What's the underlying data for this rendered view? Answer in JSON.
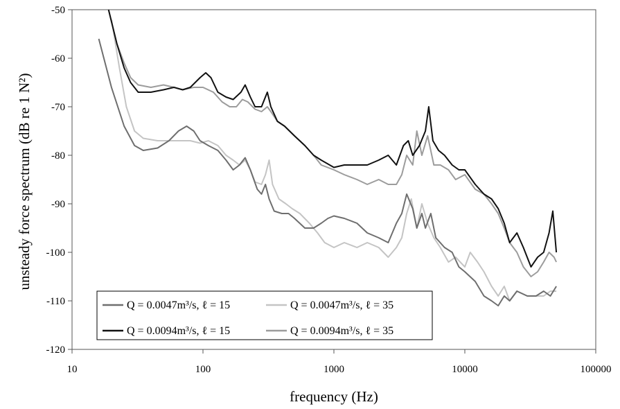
{
  "chart_data": {
    "type": "line",
    "xscale": "log",
    "xlim": [
      10,
      100000
    ],
    "ylim": [
      -120,
      -50
    ],
    "xticks": [
      10,
      100,
      1000,
      10000,
      100000
    ],
    "xtick_labels": [
      "10",
      "100",
      "1000",
      "10000",
      "100000"
    ],
    "yticks": [
      -120,
      -110,
      -100,
      -90,
      -80,
      -70,
      -60,
      -50
    ],
    "ytick_labels": [
      "-120",
      "-110",
      "-100",
      "-90",
      "-80",
      "-70",
      "-60",
      "-50"
    ],
    "xlabel": "frequency (Hz)",
    "ylabel": "unsteady force spectrum (dB re 1 N²)",
    "grid": false,
    "legend_position": "bottom-left",
    "series": [
      {
        "name": "Q = 0.0047m³/s, ℓ = 15",
        "color": "#6e6e6e",
        "points": [
          [
            16,
            -56
          ],
          [
            20,
            -66
          ],
          [
            25,
            -74
          ],
          [
            30,
            -78
          ],
          [
            35,
            -79
          ],
          [
            45,
            -78.5
          ],
          [
            55,
            -77
          ],
          [
            65,
            -75
          ],
          [
            75,
            -74
          ],
          [
            85,
            -75
          ],
          [
            95,
            -77
          ],
          [
            110,
            -78
          ],
          [
            130,
            -79
          ],
          [
            150,
            -81
          ],
          [
            170,
            -83
          ],
          [
            190,
            -82
          ],
          [
            210,
            -80.5
          ],
          [
            230,
            -83
          ],
          [
            260,
            -87
          ],
          [
            280,
            -88
          ],
          [
            300,
            -86
          ],
          [
            320,
            -89
          ],
          [
            350,
            -91.5
          ],
          [
            400,
            -92
          ],
          [
            450,
            -92
          ],
          [
            500,
            -93
          ],
          [
            600,
            -95
          ],
          [
            700,
            -95
          ],
          [
            800,
            -94
          ],
          [
            900,
            -93
          ],
          [
            1000,
            -92.5
          ],
          [
            1200,
            -93
          ],
          [
            1500,
            -94
          ],
          [
            1800,
            -96
          ],
          [
            2200,
            -97
          ],
          [
            2600,
            -98
          ],
          [
            3000,
            -94
          ],
          [
            3300,
            -92
          ],
          [
            3600,
            -88
          ],
          [
            4000,
            -91
          ],
          [
            4300,
            -95
          ],
          [
            4700,
            -92
          ],
          [
            5000,
            -95
          ],
          [
            5500,
            -92
          ],
          [
            6000,
            -97
          ],
          [
            7000,
            -99
          ],
          [
            8000,
            -100
          ],
          [
            9000,
            -103
          ],
          [
            10000,
            -104
          ],
          [
            12000,
            -106
          ],
          [
            14000,
            -109
          ],
          [
            16000,
            -110
          ],
          [
            18000,
            -111
          ],
          [
            20000,
            -109
          ],
          [
            22000,
            -110
          ],
          [
            25000,
            -108
          ],
          [
            30000,
            -109
          ],
          [
            35000,
            -109
          ],
          [
            40000,
            -108
          ],
          [
            45000,
            -109
          ],
          [
            50000,
            -107
          ]
        ]
      },
      {
        "name": "Q = 0.0047m³/s, ℓ = 35",
        "color": "#c4c4c4",
        "points": [
          [
            20,
            -52
          ],
          [
            23,
            -62
          ],
          [
            26,
            -70
          ],
          [
            30,
            -75
          ],
          [
            35,
            -76.5
          ],
          [
            45,
            -77
          ],
          [
            60,
            -77
          ],
          [
            80,
            -77
          ],
          [
            95,
            -77.5
          ],
          [
            110,
            -77
          ],
          [
            130,
            -78
          ],
          [
            150,
            -80
          ],
          [
            170,
            -81
          ],
          [
            190,
            -82
          ],
          [
            210,
            -81
          ],
          [
            230,
            -83
          ],
          [
            250,
            -85.5
          ],
          [
            280,
            -86
          ],
          [
            300,
            -84
          ],
          [
            320,
            -81
          ],
          [
            340,
            -86
          ],
          [
            380,
            -89
          ],
          [
            430,
            -90
          ],
          [
            480,
            -91
          ],
          [
            550,
            -92
          ],
          [
            650,
            -94
          ],
          [
            750,
            -96
          ],
          [
            850,
            -98
          ],
          [
            1000,
            -99
          ],
          [
            1200,
            -98
          ],
          [
            1500,
            -99
          ],
          [
            1800,
            -98
          ],
          [
            2200,
            -99
          ],
          [
            2600,
            -101
          ],
          [
            3000,
            -99
          ],
          [
            3300,
            -97
          ],
          [
            3600,
            -92
          ],
          [
            3900,
            -89
          ],
          [
            4300,
            -95
          ],
          [
            4700,
            -90
          ],
          [
            5200,
            -94
          ],
          [
            5800,
            -97
          ],
          [
            6500,
            -99
          ],
          [
            7500,
            -102
          ],
          [
            8500,
            -101
          ],
          [
            10000,
            -103
          ],
          [
            11000,
            -100
          ],
          [
            12500,
            -102
          ],
          [
            14000,
            -104
          ],
          [
            16000,
            -107
          ],
          [
            18000,
            -109
          ],
          [
            20000,
            -107
          ],
          [
            22000,
            -110
          ],
          [
            25000,
            -108
          ],
          [
            30000,
            -109
          ],
          [
            35000,
            -109
          ],
          [
            40000,
            -109
          ],
          [
            45000,
            -108
          ],
          [
            50000,
            -108
          ]
        ]
      },
      {
        "name": "Q = 0.0094m³/s, ℓ = 15",
        "color": "#111111",
        "points": [
          [
            19,
            -50
          ],
          [
            22,
            -57
          ],
          [
            25,
            -62
          ],
          [
            28,
            -65
          ],
          [
            32,
            -67
          ],
          [
            40,
            -67
          ],
          [
            50,
            -66.5
          ],
          [
            60,
            -66
          ],
          [
            70,
            -66.5
          ],
          [
            80,
            -66
          ],
          [
            95,
            -64
          ],
          [
            105,
            -63
          ],
          [
            115,
            -64
          ],
          [
            130,
            -67
          ],
          [
            150,
            -68
          ],
          [
            170,
            -68.5
          ],
          [
            195,
            -67
          ],
          [
            210,
            -65.5
          ],
          [
            230,
            -68
          ],
          [
            250,
            -70
          ],
          [
            280,
            -70
          ],
          [
            310,
            -67
          ],
          [
            330,
            -70
          ],
          [
            370,
            -73
          ],
          [
            420,
            -74
          ],
          [
            500,
            -76
          ],
          [
            600,
            -78
          ],
          [
            700,
            -80
          ],
          [
            800,
            -81
          ],
          [
            1000,
            -82.5
          ],
          [
            1200,
            -82
          ],
          [
            1500,
            -82
          ],
          [
            1800,
            -82
          ],
          [
            2200,
            -81
          ],
          [
            2600,
            -80
          ],
          [
            3000,
            -82
          ],
          [
            3400,
            -78
          ],
          [
            3700,
            -77
          ],
          [
            4000,
            -80
          ],
          [
            4500,
            -78
          ],
          [
            5000,
            -75
          ],
          [
            5300,
            -70
          ],
          [
            5700,
            -77
          ],
          [
            6300,
            -79
          ],
          [
            7000,
            -80
          ],
          [
            8000,
            -82
          ],
          [
            9000,
            -83
          ],
          [
            10000,
            -83
          ],
          [
            12000,
            -86
          ],
          [
            14000,
            -88
          ],
          [
            16000,
            -89
          ],
          [
            18000,
            -91
          ],
          [
            20000,
            -94
          ],
          [
            22000,
            -98
          ],
          [
            25000,
            -96
          ],
          [
            28000,
            -99
          ],
          [
            32000,
            -103
          ],
          [
            36000,
            -101
          ],
          [
            40000,
            -100
          ],
          [
            44000,
            -96
          ],
          [
            47000,
            -91.5
          ],
          [
            50000,
            -100
          ]
        ]
      },
      {
        "name": "Q = 0.0094m³/s, ℓ = 35",
        "color": "#9c9c9c",
        "points": [
          [
            19,
            -50
          ],
          [
            22,
            -57
          ],
          [
            25,
            -61
          ],
          [
            28,
            -64
          ],
          [
            32,
            -65.5
          ],
          [
            40,
            -66
          ],
          [
            50,
            -65.5
          ],
          [
            60,
            -66
          ],
          [
            70,
            -66.5
          ],
          [
            85,
            -66
          ],
          [
            100,
            -66
          ],
          [
            120,
            -67
          ],
          [
            140,
            -69
          ],
          [
            160,
            -70
          ],
          [
            180,
            -70
          ],
          [
            200,
            -68.5
          ],
          [
            220,
            -69
          ],
          [
            250,
            -70.5
          ],
          [
            280,
            -71
          ],
          [
            310,
            -70
          ],
          [
            330,
            -71
          ],
          [
            370,
            -73
          ],
          [
            420,
            -74
          ],
          [
            500,
            -76
          ],
          [
            600,
            -78
          ],
          [
            700,
            -80
          ],
          [
            800,
            -82
          ],
          [
            1000,
            -83
          ],
          [
            1200,
            -84
          ],
          [
            1500,
            -85
          ],
          [
            1800,
            -86
          ],
          [
            2200,
            -85
          ],
          [
            2600,
            -86
          ],
          [
            3000,
            -86
          ],
          [
            3300,
            -84
          ],
          [
            3600,
            -80
          ],
          [
            4000,
            -82
          ],
          [
            4300,
            -75
          ],
          [
            4700,
            -80
          ],
          [
            5200,
            -76
          ],
          [
            5800,
            -82
          ],
          [
            6500,
            -82
          ],
          [
            7500,
            -83
          ],
          [
            8500,
            -85
          ],
          [
            10000,
            -84
          ],
          [
            12000,
            -87
          ],
          [
            14000,
            -88
          ],
          [
            16000,
            -90
          ],
          [
            18000,
            -92
          ],
          [
            20000,
            -95
          ],
          [
            22000,
            -98
          ],
          [
            25000,
            -100
          ],
          [
            28000,
            -103
          ],
          [
            32000,
            -105
          ],
          [
            36000,
            -104
          ],
          [
            40000,
            -102
          ],
          [
            44000,
            -100
          ],
          [
            48000,
            -101
          ],
          [
            50000,
            -102
          ]
        ]
      }
    ]
  }
}
